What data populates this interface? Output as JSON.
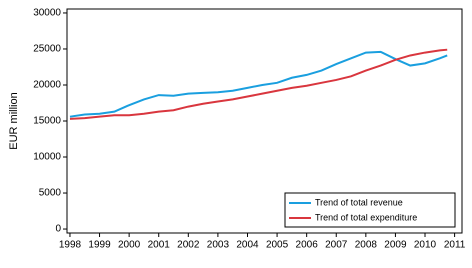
{
  "chart_data": {
    "type": "line",
    "y_label": "EUR million",
    "x": [
      1998,
      1998.5,
      1999,
      1999.5,
      2000,
      2000.5,
      2001,
      2001.5,
      2002,
      2002.5,
      2003,
      2003.5,
      2004,
      2004.5,
      2005,
      2005.5,
      2006,
      2006.5,
      2007,
      2007.5,
      2008,
      2008.5,
      2009,
      2009.5,
      2010,
      2010.5,
      2010.75
    ],
    "series": [
      {
        "name": "Trend of total revenue",
        "color": "#1a9fdf",
        "values": [
          15600,
          15900,
          16000,
          16300,
          17200,
          18000,
          18600,
          18500,
          18800,
          18900,
          19000,
          19200,
          19600,
          20000,
          20300,
          21000,
          21400,
          22000,
          22900,
          23700,
          24500,
          24600,
          23600,
          22700,
          23000,
          23700,
          24100
        ]
      },
      {
        "name": "Trend of total expenditure",
        "color": "#d9363e",
        "values": [
          15300,
          15400,
          15600,
          15800,
          15800,
          16000,
          16300,
          16500,
          17000,
          17400,
          17700,
          18000,
          18400,
          18800,
          19200,
          19600,
          19900,
          20300,
          20700,
          21200,
          22000,
          22700,
          23500,
          24100,
          24500,
          24800,
          24900
        ]
      }
    ],
    "xlim": [
      1997.9,
      2011.25
    ],
    "xticks": [
      1998,
      1999,
      2000,
      2001,
      2002,
      2003,
      2004,
      2005,
      2006,
      2007,
      2008,
      2009,
      2010,
      2011
    ],
    "ylim": [
      -550,
      30550
    ],
    "yticks": [
      0,
      5000,
      10000,
      15000,
      20000,
      25000,
      30000
    ],
    "legend": "lower right"
  }
}
